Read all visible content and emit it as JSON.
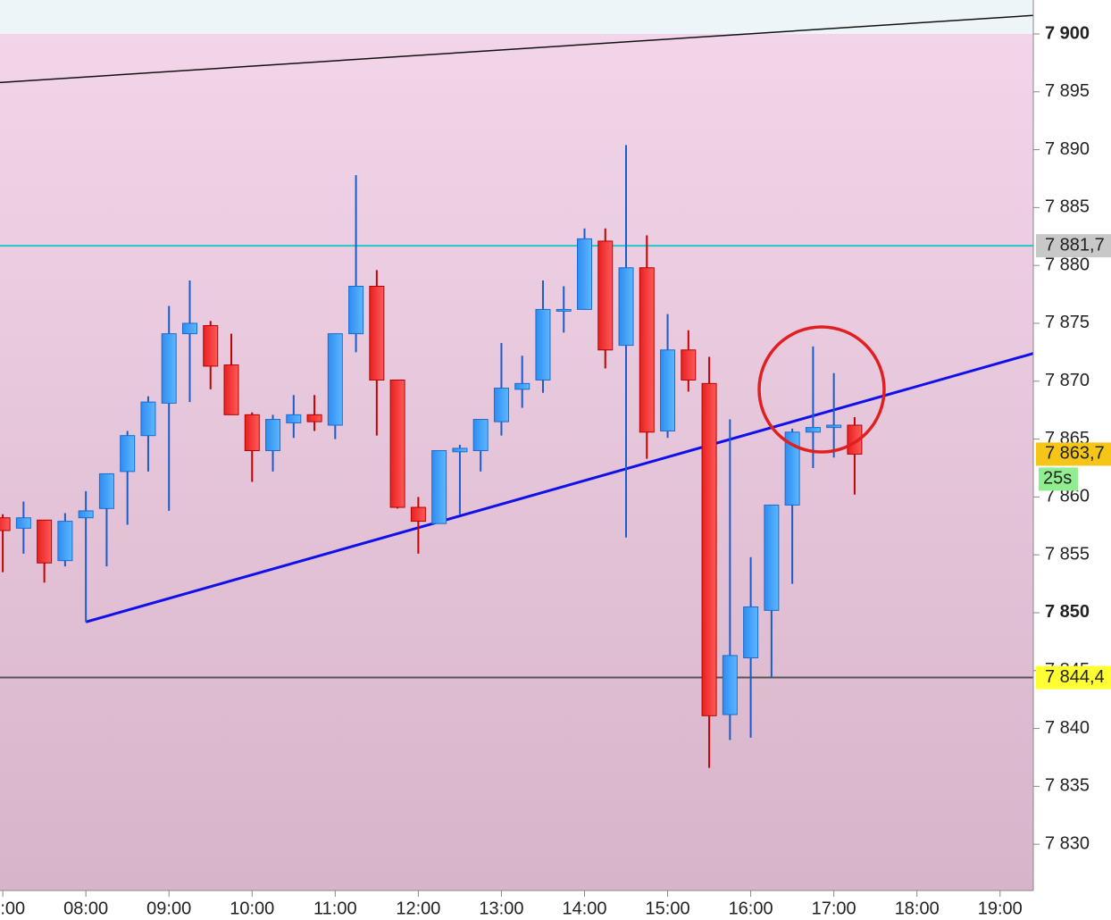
{
  "chart_data": {
    "type": "candlestick",
    "x": [
      "07:00",
      "07:15",
      "07:30",
      "07:45",
      "08:00",
      "08:15",
      "08:30",
      "08:45",
      "09:00",
      "09:15",
      "09:30",
      "09:45",
      "10:00",
      "10:15",
      "10:30",
      "10:45",
      "11:00",
      "11:15",
      "11:30",
      "11:45",
      "12:00",
      "12:15",
      "12:30",
      "12:45",
      "13:00",
      "13:15",
      "13:30",
      "13:45",
      "14:00",
      "14:15",
      "14:30",
      "14:45",
      "15:00",
      "15:15",
      "15:30",
      "15:45",
      "16:00",
      "16:15",
      "16:30",
      "16:45",
      "17:00",
      "17:15"
    ],
    "open": [
      7858.2,
      7857.3,
      7858.0,
      7854.5,
      7858.2,
      7859.0,
      7862.2,
      7865.3,
      7868.1,
      7874.1,
      7874.8,
      7871.4,
      7867.1,
      7864.0,
      7866.4,
      7867.1,
      7866.2,
      7874.1,
      7878.2,
      7870.1,
      7859.1,
      7857.7,
      7863.9,
      7864.0,
      7866.5,
      7869.3,
      7870.1,
      7876.1,
      7876.2,
      7882.1,
      7873.1,
      7879.8,
      7865.7,
      7872.7,
      7869.8,
      7841.2,
      7846.1,
      7850.2,
      7859.3,
      7865.6,
      7866.0,
      7866.2
    ],
    "high": [
      7858.5,
      7859.6,
      7858.0,
      7858.6,
      7860.5,
      7862.0,
      7865.7,
      7868.7,
      7876.5,
      7878.7,
      7875.2,
      7874.1,
      7867.3,
      7867.1,
      7868.8,
      7868.8,
      7874.1,
      7887.8,
      7879.6,
      7870.1,
      7860.0,
      7864.0,
      7864.5,
      7866.7,
      7873.3,
      7872.2,
      7878.7,
      7878.2,
      7883.2,
      7883.2,
      7890.4,
      7882.6,
      7875.8,
      7874.4,
      7872.1,
      7866.7,
      7854.8,
      7859.3,
      7865.9,
      7873.0,
      7870.7,
      7866.9
    ],
    "low": [
      7853.5,
      7855.1,
      7852.6,
      7854.0,
      7849.2,
      7854.0,
      7857.6,
      7862.2,
      7858.8,
      7868.2,
      7869.3,
      7867.1,
      7861.3,
      7862.2,
      7865.1,
      7865.7,
      7865.0,
      7872.5,
      7865.3,
      7859.0,
      7855.1,
      7857.7,
      7858.5,
      7862.2,
      7865.3,
      7867.7,
      7869.0,
      7874.2,
      7876.2,
      7871.1,
      7856.5,
      7863.3,
      7865.1,
      7869.1,
      7836.6,
      7839.0,
      7839.2,
      7844.4,
      7852.5,
      7862.5,
      7863.4,
      7860.2
    ],
    "close": [
      7857.1,
      7858.2,
      7854.3,
      7857.9,
      7858.8,
      7862.0,
      7865.3,
      7868.2,
      7874.1,
      7875.0,
      7871.3,
      7867.1,
      7864.0,
      7866.7,
      7867.1,
      7866.5,
      7874.1,
      7878.2,
      7870.1,
      7859.1,
      7857.9,
      7864.0,
      7864.2,
      7866.7,
      7869.4,
      7869.8,
      7876.2,
      7876.2,
      7882.3,
      7872.7,
      7879.8,
      7865.6,
      7872.7,
      7870.1,
      7841.1,
      7846.3,
      7850.5,
      7859.3,
      7865.6,
      7866.0,
      7866.2,
      7863.7
    ],
    "up_color": "#3a9cf5",
    "down_color": "#ff3b3b",
    "xlim": [
      "06:58",
      "19:24"
    ],
    "xticks": [
      "07:00",
      "08:00",
      "09:00",
      "10:00",
      "11:00",
      "12:00",
      "13:00",
      "14:00",
      "15:00",
      "16:00",
      "17:00",
      "18:00",
      "19:00"
    ],
    "ylim": [
      7826.0,
      7902.93
    ],
    "yticks": [
      {
        "value": 7830,
        "label": "7 830"
      },
      {
        "value": 7835,
        "label": "7 835"
      },
      {
        "value": 7840,
        "label": "7 840"
      },
      {
        "value": 7845,
        "label": "7 845"
      },
      {
        "value": 7850,
        "label": "7 850",
        "bold": true
      },
      {
        "value": 7855,
        "label": "7 855"
      },
      {
        "value": 7860,
        "label": "7 860"
      },
      {
        "value": 7865,
        "label": "7 865"
      },
      {
        "value": 7870,
        "label": "7 870"
      },
      {
        "value": 7875,
        "label": "7 875"
      },
      {
        "value": 7880,
        "label": "7 880"
      },
      {
        "value": 7885,
        "label": "7 885"
      },
      {
        "value": 7890,
        "label": "7 890"
      },
      {
        "value": 7895,
        "label": "7 895"
      },
      {
        "value": 7900,
        "label": "7 900",
        "bold": true
      }
    ],
    "levels": [
      {
        "value": 7881.7,
        "label": "7 881,7",
        "color": "#22c8c8",
        "badge_color": "#c8c8c8"
      },
      {
        "value": 7844.4,
        "label": "7 844,4",
        "color": "#555555",
        "badge_color": "#ffff33"
      }
    ],
    "trendlines": [
      {
        "x": [
          "08:00",
          "19:24"
        ],
        "y": [
          7849.2,
          7872.4
        ],
        "color": "#1010e8",
        "width": 3
      },
      {
        "x": [
          "06:58",
          "19:24"
        ],
        "y": [
          7895.8,
          7901.6
        ],
        "color": "#111111",
        "width": 1.5
      }
    ],
    "last_price": {
      "value": 7863.7,
      "label": "7 863,7",
      "badge_color": "#f5c518"
    },
    "countdown": "25s"
  }
}
